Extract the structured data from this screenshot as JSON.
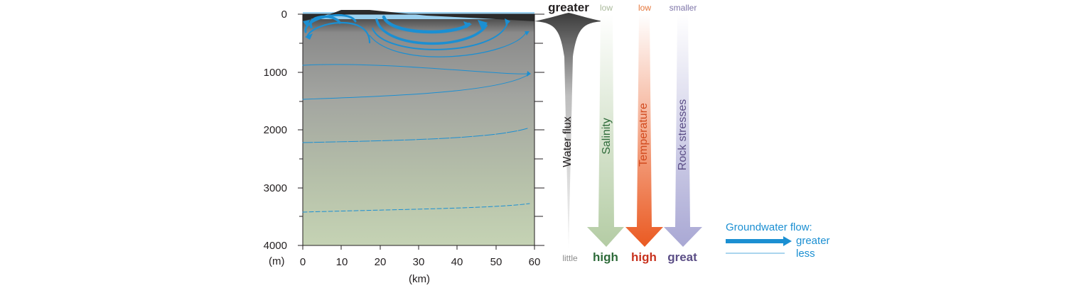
{
  "diagram": {
    "y_axis": {
      "unit": "(m)",
      "ticks": [
        "0",
        "1000",
        "2000",
        "3000",
        "4000"
      ],
      "range": [
        0,
        4000
      ]
    },
    "x_axis": {
      "unit": "(km)",
      "ticks": [
        "0",
        "10",
        "20",
        "30",
        "40",
        "50",
        "60"
      ],
      "range": [
        0,
        60
      ]
    },
    "indicators": [
      {
        "name": "Water flux",
        "top": "greater",
        "bottom": "little",
        "top_color": "#231f20",
        "bottom_color": "#8c8c8c",
        "name_color": "#231f20"
      },
      {
        "name": "Salinity",
        "top": "low",
        "bottom": "high",
        "top_color": "#a9b99a",
        "bottom_color": "#2e6b3a",
        "name_color": "#2e6b3a"
      },
      {
        "name": "Temperature",
        "top": "low",
        "bottom": "high",
        "top_color": "#e5763a",
        "bottom_color": "#c8321e",
        "name_color": "#d24a1e"
      },
      {
        "name": "Rock stresses",
        "top": "smaller",
        "bottom": "great",
        "top_color": "#7d74a8",
        "bottom_color": "#5b4e86",
        "name_color": "#5b4e86"
      }
    ],
    "legend": {
      "title": "Groundwater flow:",
      "items": [
        "greater",
        "less"
      ],
      "color": "#1b8fd2"
    }
  }
}
